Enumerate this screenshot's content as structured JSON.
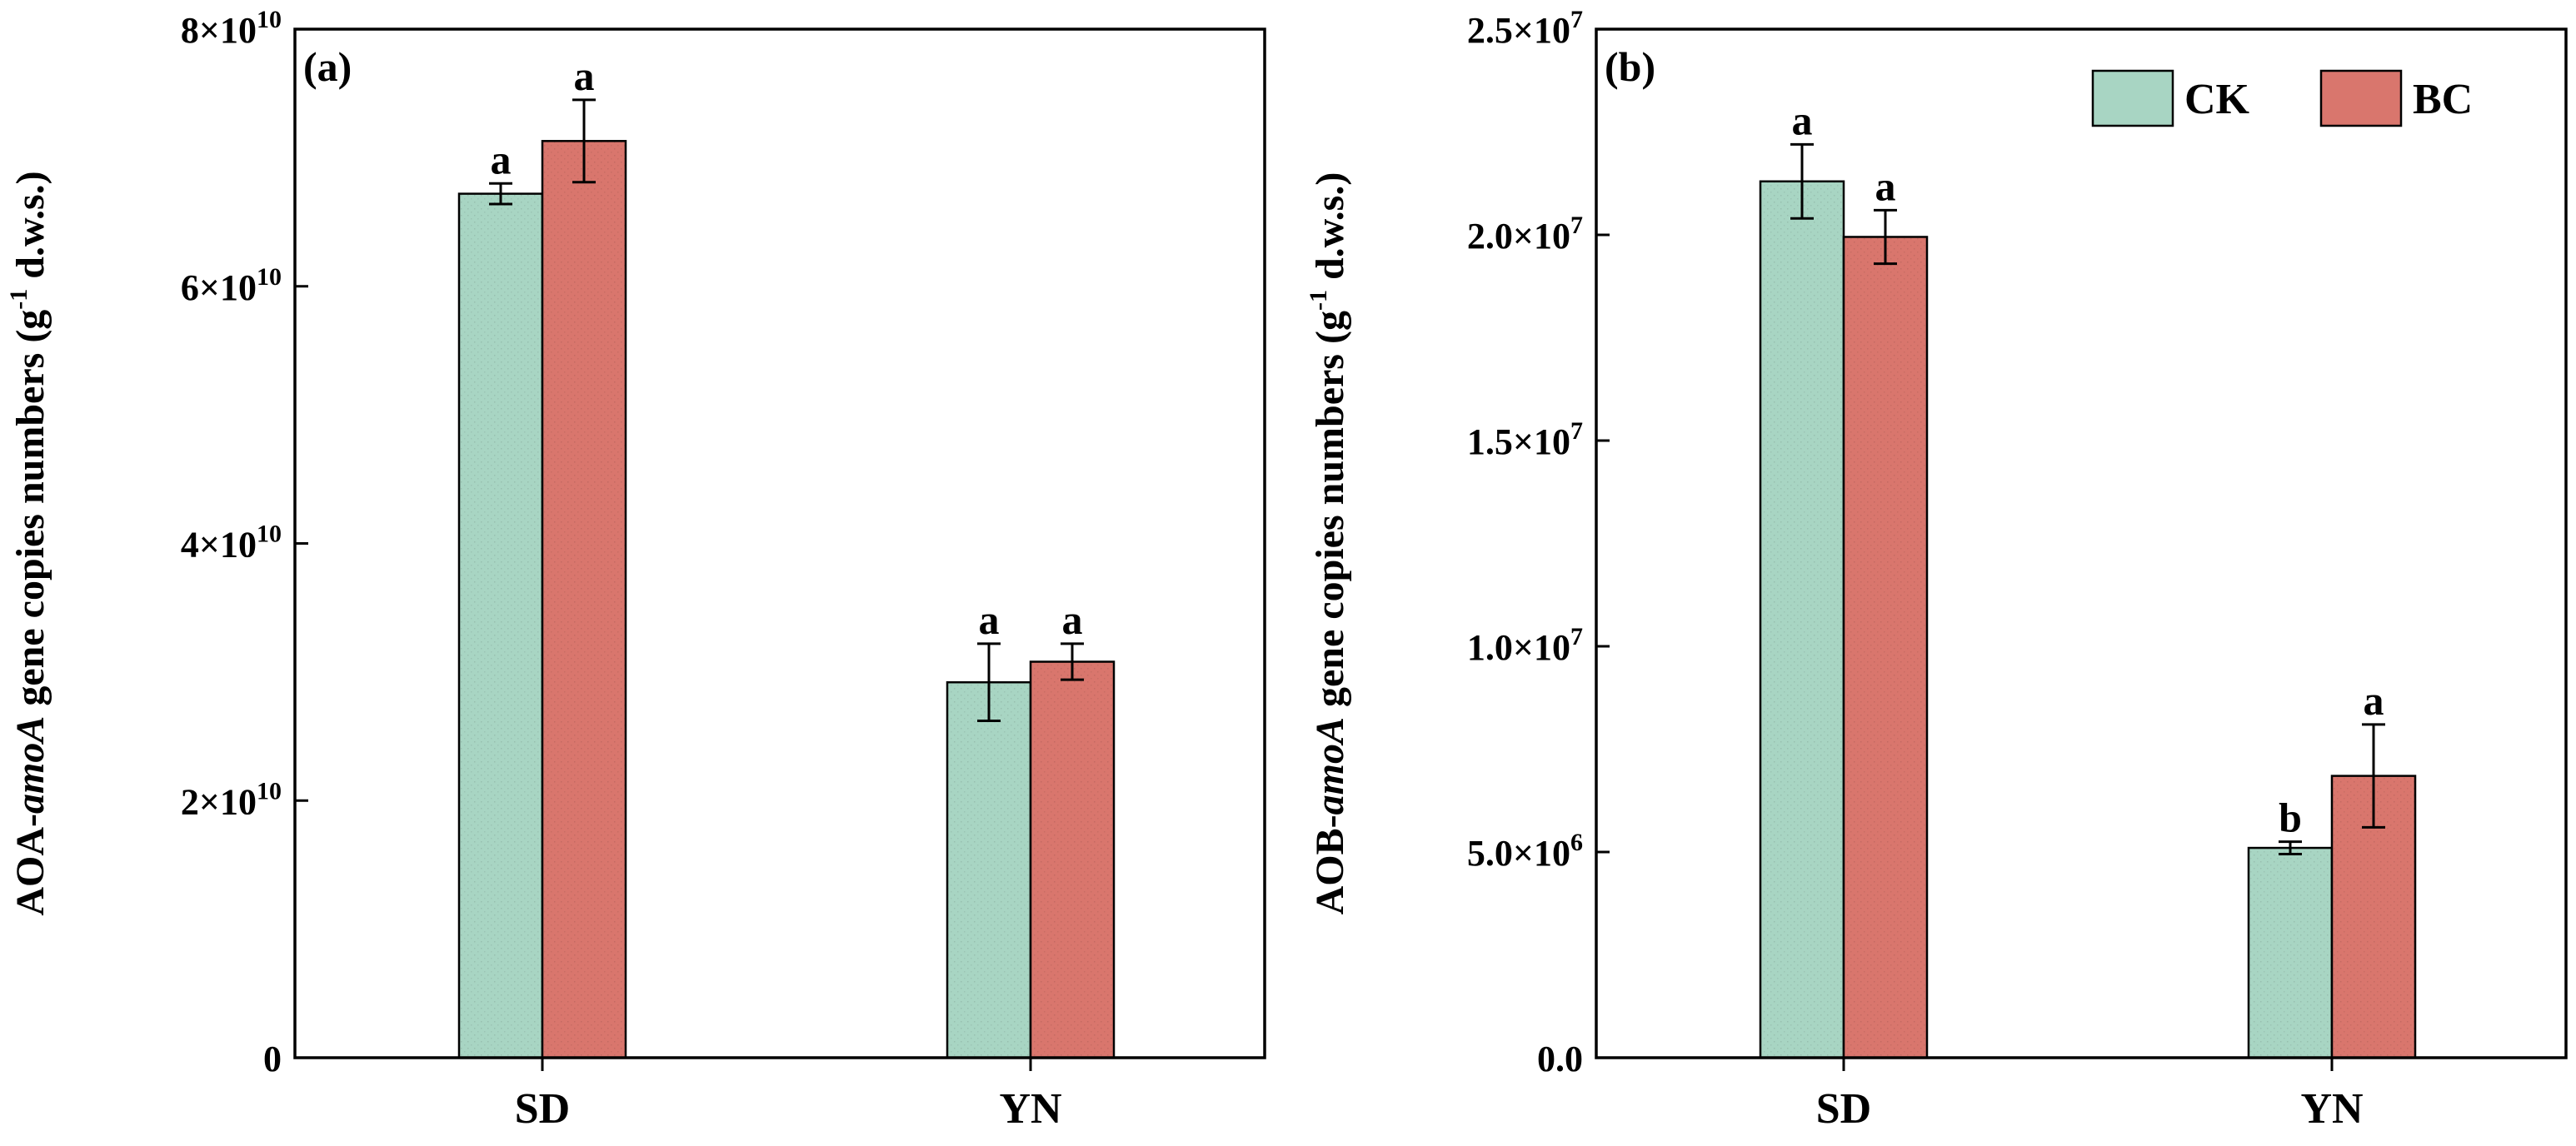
{
  "colors": {
    "CK": "#a8d5c3",
    "BC": "#d9766d"
  },
  "chart_data": [
    {
      "type": "bar",
      "panel_label": "(a)",
      "ylabel": {
        "prefix": "AOA-",
        "gene": "amoA",
        "middle": " gene copies numbers (g",
        "sup": "-1",
        "suffix": " d.w.s.)"
      },
      "categories": [
        "SD",
        "YN"
      ],
      "ylim": [
        0,
        80000000000
      ],
      "yticks": [
        {
          "value": 0,
          "mant": "0",
          "exp": ""
        },
        {
          "value": 20000000000,
          "mant": "2×10",
          "exp": "10"
        },
        {
          "value": 40000000000,
          "mant": "4×10",
          "exp": "10"
        },
        {
          "value": 60000000000,
          "mant": "6×10",
          "exp": "10"
        },
        {
          "value": 80000000000,
          "mant": "8×10",
          "exp": "10"
        }
      ],
      "legend": null,
      "series": [
        {
          "name": "CK",
          "values": [
            67200000000,
            29200000000
          ],
          "errors": [
            800000000,
            3000000000
          ],
          "sig": [
            "a",
            "a"
          ]
        },
        {
          "name": "BC",
          "values": [
            71300000000,
            30800000000
          ],
          "errors": [
            3200000000,
            1400000000
          ],
          "sig": [
            "a",
            "a"
          ]
        }
      ]
    },
    {
      "type": "bar",
      "panel_label": "(b)",
      "ylabel": {
        "prefix": "AOB-",
        "gene": "amoA",
        "middle": " gene copies numbers (g",
        "sup": "-1",
        "suffix": " d.w.s.)"
      },
      "categories": [
        "SD",
        "YN"
      ],
      "ylim": [
        0,
        25000000
      ],
      "yticks": [
        {
          "value": 0,
          "mant": "0.0",
          "exp": ""
        },
        {
          "value": 5000000,
          "mant": "5.0×10",
          "exp": "6"
        },
        {
          "value": 10000000,
          "mant": "1.0×10",
          "exp": "7"
        },
        {
          "value": 15000000,
          "mant": "1.5×10",
          "exp": "7"
        },
        {
          "value": 20000000,
          "mant": "2.0×10",
          "exp": "7"
        },
        {
          "value": 25000000,
          "mant": "2.5×10",
          "exp": "7"
        }
      ],
      "legend": [
        "CK",
        "BC"
      ],
      "series": [
        {
          "name": "CK",
          "values": [
            21300000,
            5100000
          ],
          "errors": [
            900000,
            150000
          ],
          "sig": [
            "a",
            "b"
          ]
        },
        {
          "name": "BC",
          "values": [
            19950000,
            6850000
          ],
          "errors": [
            650000,
            1250000
          ],
          "sig": [
            "a",
            "a"
          ]
        }
      ]
    }
  ]
}
